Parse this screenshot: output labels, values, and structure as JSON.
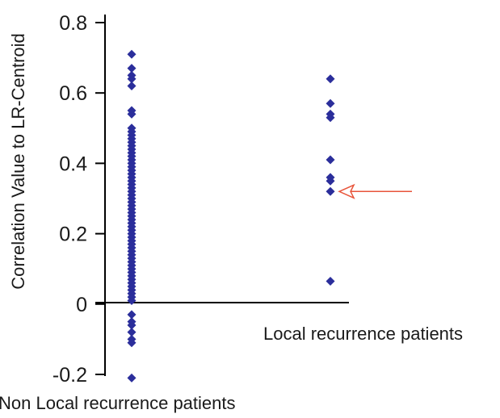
{
  "chart_data": {
    "type": "scatter",
    "ylabel": "Correlation Value to LR-Centroid",
    "ylim": [
      -0.2,
      0.8
    ],
    "yticks": [
      "0.8",
      "0.6",
      "0.4",
      "0.2",
      "0",
      "-0.2"
    ],
    "grid": false,
    "categories": [
      "Non Local recurrence patients",
      "Local recurrence patients"
    ],
    "series": [
      {
        "category": "Non Local recurrence patients",
        "color": "#2b2e9b",
        "values": [
          0.71,
          0.67,
          0.65,
          0.64,
          0.62,
          0.55,
          0.54,
          0.5,
          0.49,
          0.48,
          0.47,
          0.46,
          0.45,
          0.44,
          0.43,
          0.42,
          0.41,
          0.4,
          0.39,
          0.38,
          0.37,
          0.36,
          0.35,
          0.34,
          0.33,
          0.32,
          0.31,
          0.3,
          0.29,
          0.28,
          0.27,
          0.26,
          0.25,
          0.24,
          0.23,
          0.22,
          0.21,
          0.2,
          0.19,
          0.18,
          0.17,
          0.16,
          0.15,
          0.14,
          0.13,
          0.12,
          0.11,
          0.1,
          0.09,
          0.08,
          0.07,
          0.06,
          0.05,
          0.04,
          0.03,
          0.02,
          0.01,
          -0.03,
          -0.05,
          -0.06,
          -0.08,
          -0.1,
          -0.11,
          -0.21
        ]
      },
      {
        "category": "Local recurrence patients",
        "color": "#2b2e9b",
        "values": [
          0.64,
          0.57,
          0.54,
          0.53,
          0.41,
          0.36,
          0.35,
          0.32,
          0.065
        ]
      }
    ],
    "annotation": {
      "kind": "arrow",
      "color": "#e8543a",
      "points_to": {
        "category": "Local recurrence patients",
        "value": 0.32
      }
    }
  }
}
